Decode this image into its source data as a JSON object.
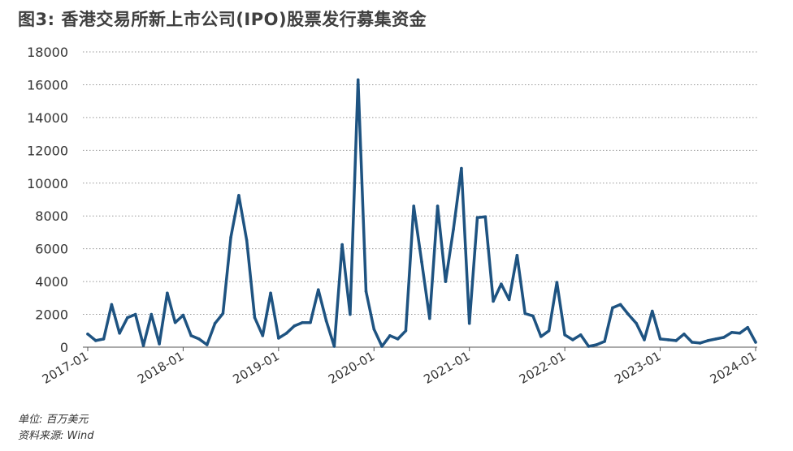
{
  "title": "图3: 香港交易所新上市公司(IPO)股票发行募集资金",
  "footer": {
    "unit": "单位: 百万美元",
    "source": "资料来源: Wind"
  },
  "colors": {
    "line": "#1e5381",
    "grid": "#999999",
    "axis": "#555555",
    "text": "#333333"
  },
  "chart_data": {
    "type": "line",
    "title": "图3: 香港交易所新上市公司(IPO)股票发行募集资金",
    "xlabel": "",
    "ylabel": "",
    "ylim": [
      0,
      18000
    ],
    "yticks": [
      0,
      2000,
      4000,
      6000,
      8000,
      10000,
      12000,
      14000,
      16000,
      18000
    ],
    "xticks": [
      "2017-01",
      "2018-01",
      "2019-01",
      "2020-01",
      "2021-01",
      "2022-01",
      "2023-01",
      "2024-01"
    ],
    "grid": "horizontal dotted",
    "x": [
      "2017-01",
      "2017-02",
      "2017-03",
      "2017-04",
      "2017-05",
      "2017-06",
      "2017-07",
      "2017-08",
      "2017-09",
      "2017-10",
      "2017-11",
      "2017-12",
      "2018-01",
      "2018-02",
      "2018-03",
      "2018-04",
      "2018-05",
      "2018-06",
      "2018-07",
      "2018-08",
      "2018-09",
      "2018-10",
      "2018-11",
      "2018-12",
      "2019-01",
      "2019-02",
      "2019-03",
      "2019-04",
      "2019-05",
      "2019-06",
      "2019-07",
      "2019-08",
      "2019-09",
      "2019-10",
      "2019-11",
      "2019-12",
      "2020-01",
      "2020-02",
      "2020-03",
      "2020-04",
      "2020-05",
      "2020-06",
      "2020-07",
      "2020-08",
      "2020-09",
      "2020-10",
      "2020-11",
      "2020-12",
      "2021-01",
      "2021-02",
      "2021-03",
      "2021-04",
      "2021-05",
      "2021-06",
      "2021-07",
      "2021-08",
      "2021-09",
      "2021-10",
      "2021-11",
      "2021-12",
      "2022-01",
      "2022-02",
      "2022-03",
      "2022-04",
      "2022-05",
      "2022-06",
      "2022-07",
      "2022-08",
      "2022-09",
      "2022-10",
      "2022-11",
      "2022-12",
      "2023-01",
      "2023-02",
      "2023-03",
      "2023-04",
      "2023-05",
      "2023-06",
      "2023-07",
      "2023-08",
      "2023-09",
      "2023-10",
      "2023-11",
      "2023-12",
      "2024-01"
    ],
    "series": [
      {
        "values": [
          800,
          400,
          500,
          2600,
          850,
          1800,
          2000,
          100,
          2000,
          200,
          3300,
          1500,
          1950,
          700,
          500,
          150,
          1450,
          2050,
          6700,
          9250,
          6500,
          1800,
          700,
          3300,
          550,
          850,
          1300,
          1500,
          1500,
          3500,
          1600,
          50,
          6250,
          2000,
          16300,
          3400,
          1100,
          50,
          700,
          500,
          1000,
          8600,
          5200,
          1750,
          8600,
          4000,
          7200,
          10900,
          1450,
          7900,
          7950,
          2800,
          3850,
          2900,
          5600,
          2050,
          1900,
          650,
          1000,
          3950,
          750,
          450,
          750,
          50,
          150,
          350,
          2400,
          2600,
          2000,
          1450,
          450,
          2200,
          500,
          450,
          400,
          800,
          300,
          250,
          400,
          500,
          600,
          900,
          850,
          1200,
          300
        ]
      }
    ]
  }
}
